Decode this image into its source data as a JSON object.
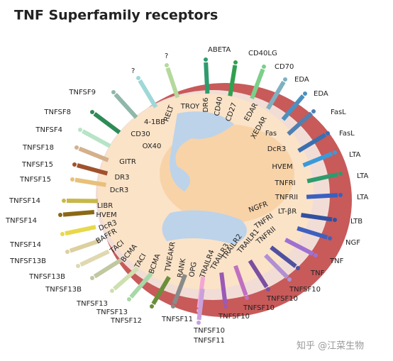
{
  "header": {
    "title": "TNF Superfamily receptors"
  },
  "receptors": [
    "RELT",
    "4-1BB",
    "CD30",
    "OX40",
    "GITR",
    "DR3",
    "DcR3",
    "LIBR",
    "HVEM",
    "DcR3",
    "BAFFR",
    "TACI",
    "BCMA",
    "TACI",
    "BCMA",
    "TWEAKR",
    "RANK",
    "OPG",
    "TRAILR4",
    "TRAILR3",
    "TRAILR2",
    "TRAILR1",
    "TNFRII",
    "TNFRI",
    "NGFR",
    "LT-βR",
    "TNFRII",
    "TNFRI",
    "HVEM",
    "DcR3",
    "Fas",
    "XEDAR",
    "EDAR",
    "CD27",
    "CD40",
    "DR6",
    "TROY"
  ],
  "ligands": [
    "TNFSF9",
    "TNFSF8",
    "TNFSF4",
    "TNFSF18",
    "TNFSF15",
    "TNFSF15",
    "TNFSF14",
    "TNFSF14",
    "TNFSF14",
    "TNFSF13B",
    "TNFSF13B",
    "TNFSF13B",
    "TNFSF13",
    "TNFSF13",
    "TNFSF12",
    "TNFSF11",
    "TNFSF10",
    "TNFSF11",
    "TNFSF10",
    "TNFSF10",
    "TNFSF10",
    "TNFSF10",
    "TNF",
    "TNF",
    "NGF",
    "LTB",
    "LTA",
    "LTA",
    "LTA",
    "FasL",
    "FasL",
    "EDA",
    "EDA",
    "CD70",
    "CD40LG",
    "ABETA",
    "?",
    "?"
  ],
  "watermark": "知乎 @江菜生物"
}
